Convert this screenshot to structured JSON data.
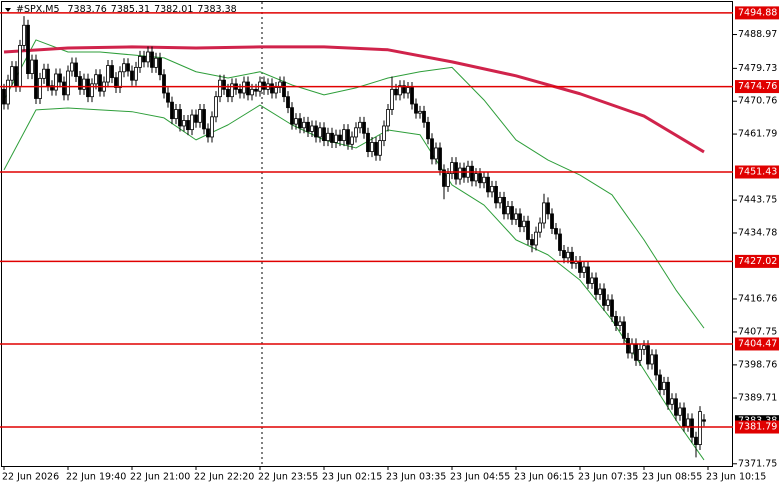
{
  "chart_data": {
    "type": "candlestick",
    "title": "#SPX,M5",
    "open": [
      7474.0,
      7470.0,
      7476.5,
      7480.2,
      7474.8,
      7486.0,
      7491.5,
      7478.3,
      7482.0,
      7471.5,
      7477.0,
      7479.5,
      7475.0,
      7473.8,
      7478.2,
      7476.0,
      7472.5,
      7479.0,
      7481.2,
      7477.5,
      7474.0,
      7476.8,
      7472.0,
      7475.5,
      7478.0,
      7473.5,
      7476.0,
      7480.5,
      7477.2,
      7474.5,
      7478.8,
      7481.0,
      7479.0,
      7476.5,
      7480.0,
      7483.0,
      7481.5,
      7484.2,
      7480.0,
      7482.5,
      7478.0,
      7473.0,
      7470.5,
      7466.0,
      7468.5,
      7464.0,
      7465.5,
      7463.0,
      7467.0,
      7465.0,
      7468.5,
      7463.2,
      7461.0,
      7466.5,
      7472.0,
      7476.5,
      7474.0,
      7472.0,
      7475.5,
      7474.0,
      7473.0,
      7476.0,
      7472.5,
      7474.0,
      7473.5,
      7476.0,
      7474.0,
      7475.5,
      7473.0,
      7474.5,
      7476.0,
      7472.0,
      7469.0,
      7464.5,
      7466.0,
      7463.5,
      7465.0,
      7462.5,
      7464.0,
      7461.0,
      7463.5,
      7460.0,
      7462.0,
      7459.5,
      7461.5,
      7460.0,
      7463.0,
      7459.0,
      7461.0,
      7463.5,
      7465.0,
      7462.0,
      7457.0,
      7459.5,
      7456.0,
      7460.0,
      7464.0,
      7468.5,
      7474.0,
      7472.5,
      7475.0,
      7473.0,
      7474.5,
      7470.0,
      7467.5,
      7468.0,
      7465.0,
      7460.5,
      7455.0,
      7458.0,
      7452.0,
      7447.5,
      7451.0,
      7454.0,
      7449.5,
      7452.5,
      7450.0,
      7453.0,
      7449.0,
      7451.0,
      7448.5,
      7450.0,
      7446.0,
      7447.5,
      7443.0,
      7444.5,
      7440.0,
      7442.0,
      7438.5,
      7440.0,
      7436.5,
      7438.0,
      7433.0,
      7431.5,
      7435.0,
      7437.5,
      7443.0,
      7440.0,
      7436.0,
      7434.5,
      7430.0,
      7428.0,
      7429.5,
      7426.5,
      7427.0,
      7424.0,
      7425.5,
      7421.0,
      7422.5,
      7418.0,
      7419.5,
      7415.0,
      7416.5,
      7412.0,
      7409.5,
      7410.5,
      7406.0,
      7402.0,
      7404.5,
      7400.0,
      7403.0,
      7404.0,
      7399.0,
      7401.5,
      7396.0,
      7392.0,
      7394.0,
      7388.0,
      7389.5,
      7385.0,
      7387.0,
      7382.0,
      7384.0,
      7379.0,
      7377.0,
      7383.76
    ],
    "high": [
      7475.5,
      7478.0,
      7481.7,
      7481.7,
      7487.5,
      7494.0,
      7493.0,
      7483.5,
      7483.5,
      7478.5,
      7481.0,
      7481.0,
      7476.5,
      7479.7,
      7479.7,
      7477.5,
      7480.5,
      7482.7,
      7482.7,
      7479.0,
      7478.3,
      7478.3,
      7477.0,
      7479.5,
      7479.5,
      7477.5,
      7482.0,
      7482.0,
      7478.7,
      7480.3,
      7482.5,
      7482.5,
      7480.5,
      7481.5,
      7484.5,
      7484.5,
      7485.7,
      7485.7,
      7484.0,
      7484.0,
      7479.5,
      7474.5,
      7472.0,
      7470.0,
      7470.0,
      7467.0,
      7467.0,
      7468.5,
      7468.5,
      7470.0,
      7470.0,
      7464.7,
      7468.0,
      7473.5,
      7478.0,
      7478.0,
      7475.5,
      7477.0,
      7477.0,
      7475.5,
      7477.5,
      7477.5,
      7475.5,
      7475.5,
      7477.5,
      7477.5,
      7477.0,
      7477.0,
      7476.0,
      7477.5,
      7477.5,
      7473.5,
      7470.5,
      7467.5,
      7467.5,
      7466.5,
      7466.5,
      7465.5,
      7465.5,
      7465.0,
      7465.0,
      7463.5,
      7463.5,
      7463.0,
      7463.0,
      7464.5,
      7464.5,
      7462.5,
      7465.0,
      7466.5,
      7466.5,
      7463.5,
      7461.0,
      7461.0,
      7461.5,
      7465.5,
      7470.0,
      7477.5,
      7475.5,
      7476.5,
      7476.5,
      7476.0,
      7476.0,
      7471.5,
      7469.5,
      7469.5,
      7466.5,
      7462.0,
      7459.5,
      7459.5,
      7453.5,
      7452.5,
      7455.5,
      7455.5,
      7454.0,
      7454.0,
      7454.5,
      7454.5,
      7452.5,
      7452.5,
      7451.5,
      7451.5,
      7449.0,
      7449.0,
      7446.0,
      7446.0,
      7443.5,
      7443.5,
      7441.5,
      7441.5,
      7439.5,
      7439.5,
      7434.5,
      7436.5,
      7439.0,
      7445.5,
      7444.5,
      7441.5,
      7437.5,
      7436.0,
      7431.5,
      7431.0,
      7431.0,
      7428.5,
      7428.5,
      7427.0,
      7427.0,
      7424.0,
      7424.0,
      7421.0,
      7421.0,
      7418.0,
      7418.0,
      7413.5,
      7412.0,
      7412.0,
      7407.5,
      7406.0,
      7406.0,
      7404.5,
      7405.5,
      7405.5,
      7403.0,
      7403.0,
      7397.5,
      7395.5,
      7395.5,
      7391.0,
      7391.0,
      7388.5,
      7388.5,
      7385.5,
      7385.5,
      7380.5,
      7387.5,
      7385.31
    ],
    "low": [
      7468.5,
      7468.5,
      7475.0,
      7473.3,
      7473.3,
      7484.5,
      7476.8,
      7476.8,
      7470.0,
      7470.0,
      7475.5,
      7473.5,
      7472.3,
      7472.3,
      7474.5,
      7471.0,
      7471.0,
      7477.5,
      7476.0,
      7472.5,
      7472.5,
      7470.5,
      7470.5,
      7474.0,
      7472.0,
      7472.0,
      7474.5,
      7475.7,
      7473.0,
      7473.0,
      7477.3,
      7477.5,
      7475.0,
      7475.0,
      7478.5,
      7480.0,
      7480.0,
      7478.5,
      7478.5,
      7476.5,
      7471.5,
      7469.0,
      7464.5,
      7464.5,
      7462.5,
      7462.5,
      7461.5,
      7461.5,
      7463.5,
      7463.5,
      7461.7,
      7459.5,
      7459.5,
      7465.0,
      7470.5,
      7472.5,
      7470.5,
      7470.5,
      7472.5,
      7471.5,
      7471.5,
      7471.0,
      7471.0,
      7472.0,
      7472.0,
      7472.5,
      7472.5,
      7471.5,
      7471.5,
      7473.0,
      7470.5,
      7467.5,
      7463.0,
      7463.0,
      7462.0,
      7462.0,
      7461.0,
      7461.0,
      7459.5,
      7459.5,
      7458.5,
      7458.5,
      7458.0,
      7458.0,
      7458.5,
      7458.5,
      7457.5,
      7457.5,
      7459.5,
      7462.0,
      7460.5,
      7455.5,
      7455.5,
      7454.5,
      7454.5,
      7458.5,
      7462.5,
      7467.0,
      7471.0,
      7471.0,
      7471.5,
      7471.5,
      7468.5,
      7466.0,
      7466.0,
      7463.5,
      7459.0,
      7453.5,
      7453.5,
      7450.5,
      7444.0,
      7446.0,
      7449.5,
      7448.0,
      7448.0,
      7448.5,
      7448.5,
      7447.5,
      7447.5,
      7447.0,
      7447.0,
      7444.5,
      7444.5,
      7441.5,
      7441.5,
      7438.5,
      7438.5,
      7437.0,
      7437.0,
      7435.0,
      7435.0,
      7431.5,
      7429.5,
      7430.0,
      7433.5,
      7436.0,
      7438.5,
      7434.5,
      7433.0,
      7428.5,
      7426.5,
      7426.5,
      7425.0,
      7425.0,
      7422.5,
      7422.5,
      7419.5,
      7419.5,
      7416.5,
      7416.5,
      7413.5,
      7413.5,
      7410.5,
      7408.0,
      7408.0,
      7404.5,
      7400.5,
      7400.5,
      7398.5,
      7398.5,
      7401.5,
      7397.5,
      7397.5,
      7394.5,
      7390.5,
      7390.5,
      7386.5,
      7386.5,
      7383.5,
      7383.5,
      7380.5,
      7380.5,
      7377.5,
      7373.5,
      7375.5,
      7382.01
    ],
    "close": [
      7470.0,
      7476.5,
      7480.2,
      7474.8,
      7486.0,
      7491.5,
      7478.3,
      7482.0,
      7471.5,
      7477.0,
      7479.5,
      7475.0,
      7473.8,
      7478.2,
      7476.0,
      7472.5,
      7479.0,
      7481.2,
      7477.5,
      7474.0,
      7476.8,
      7472.0,
      7475.5,
      7478.0,
      7473.5,
      7476.0,
      7480.5,
      7477.2,
      7474.5,
      7478.8,
      7481.0,
      7479.0,
      7476.5,
      7480.0,
      7483.0,
      7481.5,
      7484.2,
      7480.0,
      7482.5,
      7478.0,
      7473.0,
      7470.5,
      7466.0,
      7468.5,
      7464.0,
      7465.5,
      7463.0,
      7467.0,
      7465.0,
      7468.5,
      7463.2,
      7461.0,
      7466.5,
      7472.0,
      7476.5,
      7474.0,
      7472.0,
      7475.5,
      7474.0,
      7473.0,
      7476.0,
      7472.5,
      7474.0,
      7473.5,
      7476.0,
      7474.0,
      7475.5,
      7473.0,
      7474.5,
      7476.0,
      7472.0,
      7469.0,
      7464.5,
      7466.0,
      7463.5,
      7465.0,
      7462.5,
      7464.0,
      7461.0,
      7463.5,
      7460.0,
      7462.0,
      7459.5,
      7461.5,
      7460.0,
      7463.0,
      7459.0,
      7461.0,
      7463.5,
      7465.0,
      7462.0,
      7457.0,
      7459.5,
      7456.0,
      7460.0,
      7464.0,
      7468.5,
      7474.0,
      7472.5,
      7475.0,
      7473.0,
      7474.5,
      7470.0,
      7467.5,
      7468.0,
      7465.0,
      7460.5,
      7455.0,
      7458.0,
      7452.0,
      7447.5,
      7451.0,
      7454.0,
      7449.5,
      7452.5,
      7450.0,
      7453.0,
      7449.0,
      7451.0,
      7448.5,
      7450.0,
      7446.0,
      7447.5,
      7443.0,
      7444.5,
      7440.0,
      7442.0,
      7438.5,
      7440.0,
      7436.5,
      7438.0,
      7433.0,
      7431.5,
      7435.0,
      7437.5,
      7443.0,
      7440.0,
      7436.0,
      7434.5,
      7430.0,
      7428.0,
      7429.5,
      7426.5,
      7427.0,
      7424.0,
      7425.5,
      7421.0,
      7422.5,
      7418.0,
      7419.5,
      7415.0,
      7416.5,
      7412.0,
      7409.5,
      7410.5,
      7406.0,
      7402.0,
      7404.5,
      7400.0,
      7403.0,
      7404.0,
      7399.0,
      7401.5,
      7396.0,
      7392.0,
      7394.0,
      7388.0,
      7389.5,
      7385.0,
      7387.0,
      7382.0,
      7384.0,
      7379.0,
      7377.0,
      7386.0,
      7383.38
    ],
    "overlays": [
      {
        "color": "#2e9e3a",
        "width": 1,
        "x": [
          0,
          8,
          16,
          24,
          32,
          40,
          48,
          56,
          64,
          72,
          80,
          88,
          96,
          104,
          112,
          120,
          128,
          136,
          144,
          152,
          160,
          168,
          175
        ],
        "values": [
          7471.1,
          7487.5,
          7484.2,
          7484.2,
          7483.4,
          7482.6,
          7478.8,
          7477.1,
          7478.8,
          7475.2,
          7472.5,
          7474.4,
          7477.1,
          7478.8,
          7480.0,
          7471.1,
          7460.2,
          7454.7,
          7450.6,
          7445.2,
          7432.9,
          7419.2,
          7408.8
        ]
      },
      {
        "color": "#2e9e3a",
        "width": 1,
        "x": [
          0,
          8,
          16,
          24,
          32,
          40,
          48,
          56,
          64,
          72,
          80,
          88,
          96,
          104,
          112,
          120,
          128,
          136,
          144,
          152,
          160,
          168,
          175
        ],
        "values": [
          7452.0,
          7468.4,
          7468.9,
          7468.4,
          7467.9,
          7466.2,
          7460.2,
          7464.3,
          7469.7,
          7464.3,
          7460.2,
          7458.0,
          7462.9,
          7461.6,
          7447.9,
          7442.4,
          7432.9,
          7428.8,
          7421.9,
          7411.0,
          7397.4,
          7383.7,
          7372.8
        ]
      },
      {
        "color": "#d0234b",
        "width": 3,
        "x": [
          0,
          16,
          32,
          48,
          64,
          80,
          96,
          112,
          128,
          144,
          160,
          175
        ],
        "values": [
          7484.2,
          7485.3,
          7485.6,
          7485.3,
          7485.6,
          7485.6,
          7484.8,
          7481.5,
          7477.7,
          7472.8,
          7466.7,
          7456.9
        ]
      }
    ],
    "levels": [
      7494.88,
      7474.76,
      7451.43,
      7427.02,
      7404.47,
      7381.79
    ],
    "level_color": "#e00000",
    "up_color": "#ffffff",
    "down_color": "#000000",
    "ylim": [
      7370.6,
      7498.4
    ],
    "yticks": [
      7488.97,
      7479.73,
      7470.76,
      7461.79,
      7443.75,
      7434.78,
      7416.76,
      7407.75,
      7398.76,
      7389.71,
      7371.75
    ],
    "xlim": [
      -1,
      182.25
    ],
    "xticks": [
      {
        "value": 0,
        "label": "22 Jun 2026"
      },
      {
        "value": 16,
        "label": "22 Jun 19:40"
      },
      {
        "value": 32,
        "label": "22 Jun 21:00"
      },
      {
        "value": 48,
        "label": "22 Jun 22:20"
      },
      {
        "value": 64,
        "label": "22 Jun 23:55"
      },
      {
        "value": 80,
        "label": "23 Jun 02:15"
      },
      {
        "value": 96,
        "label": "23 Jun 03:35"
      },
      {
        "value": 112,
        "label": "23 Jun 04:55"
      },
      {
        "value": 128,
        "label": "23 Jun 06:15"
      },
      {
        "value": 144,
        "label": "23 Jun 07:35"
      },
      {
        "value": 160,
        "label": "23 Jun 08:55"
      },
      {
        "value": 176,
        "label": "23 Jun 10:15"
      }
    ],
    "grid": false
  }
}
